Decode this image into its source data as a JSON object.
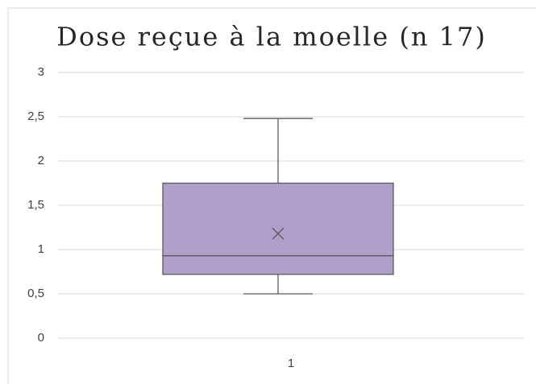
{
  "chart_data": {
    "type": "box",
    "title": "Dose reçue à la moelle (n 17)",
    "categories": [
      "1"
    ],
    "boxes": [
      {
        "min": 0.5,
        "q1": 0.72,
        "median": 0.93,
        "q3": 1.75,
        "max": 2.48,
        "mean": 1.18
      }
    ],
    "color": "#b09fc9",
    "ylim": [
      0,
      3
    ],
    "yticks": [
      0,
      {
        "value": 0.5,
        "label": "0,5"
      },
      1,
      {
        "value": 1.5,
        "label": "1,5"
      },
      2,
      {
        "value": 2.5,
        "label": "2,5"
      },
      3
    ],
    "grid": true
  }
}
